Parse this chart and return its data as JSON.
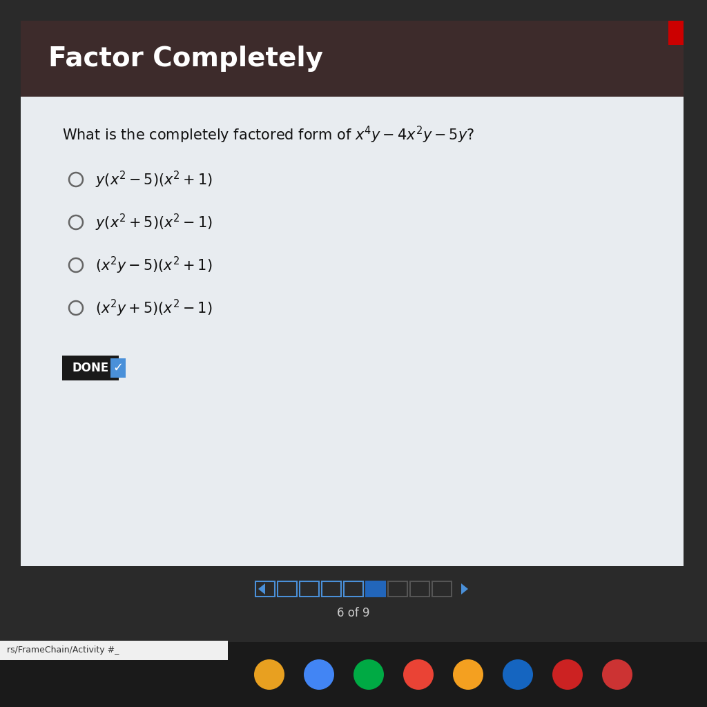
{
  "title": "Factor Completely",
  "title_bg": "#3d2b2b",
  "title_color": "#ffffff",
  "title_fontsize": 28,
  "question": "What is the completely factored form of $x^4y - 4x^2y - 5y$?",
  "question_fontsize": 15,
  "options": [
    "$y(x^2 - 5)(x^2 + 1)$",
    "$y(x^2 + 5)(x^2 - 1)$",
    "$(x^2y - 5)(x^2 + 1)$",
    "$(x^2y + 5)(x^2 - 1)$"
  ],
  "option_fontsize": 15,
  "done_label": "DONE",
  "done_bg": "#1a1a1a",
  "done_check_color": "#4a90d9",
  "bg_content": "#e8ecf0",
  "bg_outer": "#2a2a2a",
  "page_indicator": "6 of 9",
  "url_bar": "rs/FrameChain/Activity #_",
  "nav_arrow_color": "#4a90d9",
  "nav_box_active_color": "#2266bb",
  "nav_box_inactive_color": "#4a90d9",
  "nav_box_dim_color": "#555555",
  "taskbar_color": "#1a1a1a",
  "url_bar_color": "#f0f0f0",
  "icon_colors": [
    "#e8a020",
    "#4285f4",
    "#00aa44",
    "#ea4335",
    "#f4a020",
    "#1565c0",
    "#cc2222",
    "#cc3333"
  ]
}
